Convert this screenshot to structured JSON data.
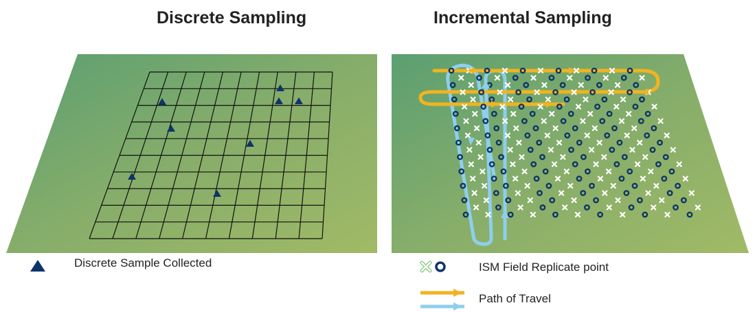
{
  "titles": {
    "left": "Discrete Sampling",
    "right": "Incremental Sampling"
  },
  "legend": {
    "discrete_sample": "Discrete Sample Collected",
    "ism_replicate": "ISM Field Replicate point",
    "path_of_travel": "Path of Travel"
  },
  "colors": {
    "field_top": "#5b9f72",
    "field_bottom": "#9cb865",
    "grid_line": "#111111",
    "triangle": "#0e3468",
    "circle": "#0e3468",
    "cross": "#ffffff",
    "path_orange": "#f2b321",
    "path_blue": "#8ecfee",
    "legend_cross": "#7ec878"
  },
  "icons": {
    "triangle": "triangle-marker-icon",
    "circle": "circle-marker-icon",
    "cross": "cross-marker-icon",
    "arrow": "arrow-icon"
  }
}
